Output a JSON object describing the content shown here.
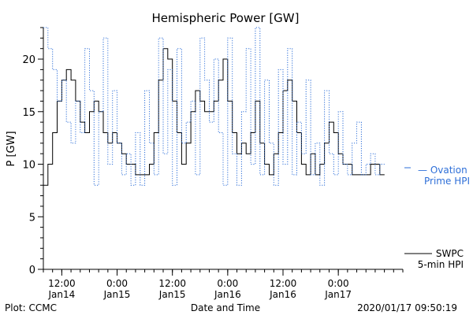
{
  "chart_data": {
    "type": "line",
    "title": "Hemispheric Power [GW]",
    "xlabel": "Date and Time",
    "ylabel": "P [GW]",
    "ylim": [
      0,
      23
    ],
    "yticks": [
      0,
      5,
      10,
      15,
      20
    ],
    "xlim": [
      "2020-01-14T08:00",
      "2020-01-17T14:00"
    ],
    "xticks": [
      {
        "t": "2020-01-14T12:00",
        "time": "12:00",
        "date": "Jan14"
      },
      {
        "t": "2020-01-15T00:00",
        "time": "0:00",
        "date": "Jan15"
      },
      {
        "t": "2020-01-15T12:00",
        "time": "12:00",
        "date": "Jan15"
      },
      {
        "t": "2020-01-16T00:00",
        "time": "0:00",
        "date": "Jan16"
      },
      {
        "t": "2020-01-16T12:00",
        "time": "12:00",
        "date": "Jan16"
      },
      {
        "t": "2020-01-17T00:00",
        "time": "0:00",
        "date": "Jan17"
      }
    ],
    "grid": false,
    "legend_placement": "right",
    "series": [
      {
        "name": "SWPC 5-min HPI",
        "legend": [
          "SWPC",
          "5-min HPI"
        ],
        "color": "#000000",
        "style": "solid",
        "x": [
          "2020-01-14T08:00",
          "2020-01-14T09:00",
          "2020-01-14T10:00",
          "2020-01-14T11:00",
          "2020-01-14T12:00",
          "2020-01-14T13:00",
          "2020-01-14T14:00",
          "2020-01-14T15:00",
          "2020-01-14T16:00",
          "2020-01-14T17:00",
          "2020-01-14T18:00",
          "2020-01-14T19:00",
          "2020-01-14T20:00",
          "2020-01-14T21:00",
          "2020-01-14T22:00",
          "2020-01-14T23:00",
          "2020-01-15T00:00",
          "2020-01-15T01:00",
          "2020-01-15T02:00",
          "2020-01-15T03:00",
          "2020-01-15T04:00",
          "2020-01-15T05:00",
          "2020-01-15T06:00",
          "2020-01-15T07:00",
          "2020-01-15T08:00",
          "2020-01-15T09:00",
          "2020-01-15T10:00",
          "2020-01-15T11:00",
          "2020-01-15T12:00",
          "2020-01-15T13:00",
          "2020-01-15T14:00",
          "2020-01-15T15:00",
          "2020-01-15T16:00",
          "2020-01-15T17:00",
          "2020-01-15T18:00",
          "2020-01-15T19:00",
          "2020-01-15T20:00",
          "2020-01-15T21:00",
          "2020-01-15T22:00",
          "2020-01-15T23:00",
          "2020-01-16T00:00",
          "2020-01-16T01:00",
          "2020-01-16T02:00",
          "2020-01-16T03:00",
          "2020-01-16T04:00",
          "2020-01-16T05:00",
          "2020-01-16T06:00",
          "2020-01-16T07:00",
          "2020-01-16T08:00",
          "2020-01-16T09:00",
          "2020-01-16T10:00",
          "2020-01-16T11:00",
          "2020-01-16T12:00",
          "2020-01-16T13:00",
          "2020-01-16T14:00",
          "2020-01-16T15:00",
          "2020-01-16T16:00",
          "2020-01-16T17:00",
          "2020-01-16T18:00",
          "2020-01-16T19:00",
          "2020-01-16T20:00",
          "2020-01-16T21:00",
          "2020-01-16T22:00",
          "2020-01-16T23:00",
          "2020-01-17T00:00",
          "2020-01-17T01:00",
          "2020-01-17T02:00",
          "2020-01-17T03:00",
          "2020-01-17T04:00",
          "2020-01-17T05:00",
          "2020-01-17T06:00",
          "2020-01-17T07:00",
          "2020-01-17T08:00",
          "2020-01-17T09:00"
        ],
        "y": [
          8,
          10,
          13,
          16,
          18,
          19,
          18,
          16,
          14,
          13,
          15,
          16,
          15,
          13,
          12,
          13,
          12,
          11,
          10,
          10,
          9,
          9,
          9,
          10,
          13,
          18,
          21,
          20,
          16,
          13,
          10,
          12,
          15,
          17,
          16,
          15,
          15,
          16,
          18,
          20,
          16,
          13,
          11,
          12,
          11,
          13,
          16,
          12,
          10,
          9,
          11,
          13,
          17,
          18,
          16,
          13,
          10,
          9,
          11,
          9,
          10,
          12,
          14,
          13,
          11,
          10,
          10,
          9,
          9,
          9,
          9,
          10,
          10,
          9
        ]
      },
      {
        "name": "Ovation Prime HPI",
        "legend": [
          "— Ovation",
          "Prime HPI"
        ],
        "color": "#2e6fd8",
        "style": "dotted",
        "x": [
          "2020-01-14T08:00",
          "2020-01-14T09:00",
          "2020-01-14T10:00",
          "2020-01-14T11:00",
          "2020-01-14T12:00",
          "2020-01-14T13:00",
          "2020-01-14T14:00",
          "2020-01-14T15:00",
          "2020-01-14T16:00",
          "2020-01-14T17:00",
          "2020-01-14T18:00",
          "2020-01-14T19:00",
          "2020-01-14T20:00",
          "2020-01-14T21:00",
          "2020-01-14T22:00",
          "2020-01-14T23:00",
          "2020-01-15T00:00",
          "2020-01-15T01:00",
          "2020-01-15T02:00",
          "2020-01-15T03:00",
          "2020-01-15T04:00",
          "2020-01-15T05:00",
          "2020-01-15T06:00",
          "2020-01-15T07:00",
          "2020-01-15T08:00",
          "2020-01-15T09:00",
          "2020-01-15T10:00",
          "2020-01-15T11:00",
          "2020-01-15T12:00",
          "2020-01-15T13:00",
          "2020-01-15T14:00",
          "2020-01-15T15:00",
          "2020-01-15T16:00",
          "2020-01-15T17:00",
          "2020-01-15T18:00",
          "2020-01-15T19:00",
          "2020-01-15T20:00",
          "2020-01-15T21:00",
          "2020-01-15T22:00",
          "2020-01-15T23:00",
          "2020-01-16T00:00",
          "2020-01-16T01:00",
          "2020-01-16T02:00",
          "2020-01-16T03:00",
          "2020-01-16T04:00",
          "2020-01-16T05:00",
          "2020-01-16T06:00",
          "2020-01-16T07:00",
          "2020-01-16T08:00",
          "2020-01-16T09:00",
          "2020-01-16T10:00",
          "2020-01-16T11:00",
          "2020-01-16T12:00",
          "2020-01-16T13:00",
          "2020-01-16T14:00",
          "2020-01-16T15:00",
          "2020-01-16T16:00",
          "2020-01-16T17:00",
          "2020-01-16T18:00",
          "2020-01-16T19:00",
          "2020-01-16T20:00",
          "2020-01-16T21:00",
          "2020-01-16T22:00",
          "2020-01-16T23:00",
          "2020-01-17T00:00",
          "2020-01-17T01:00",
          "2020-01-17T02:00",
          "2020-01-17T03:00",
          "2020-01-17T04:00",
          "2020-01-17T05:00",
          "2020-01-17T06:00",
          "2020-01-17T07:00",
          "2020-01-17T08:00",
          "2020-01-17T09:00"
        ],
        "y": [
          23,
          21,
          19,
          16,
          18,
          14,
          12,
          16,
          13,
          21,
          17,
          8,
          15,
          22,
          10,
          17,
          12,
          9,
          11,
          8,
          13,
          8,
          17,
          12,
          9,
          22,
          11,
          19,
          8,
          21,
          12,
          14,
          16,
          9,
          22,
          18,
          14,
          20,
          13,
          8,
          22,
          11,
          8,
          15,
          21,
          10,
          23,
          9,
          18,
          12,
          8,
          19,
          10,
          21,
          9,
          14,
          11,
          18,
          9,
          12,
          8,
          17,
          11,
          9,
          15,
          10,
          9,
          12,
          14,
          9,
          10,
          11,
          9,
          10
        ]
      }
    ]
  },
  "footer": {
    "left": "Plot: CCMC",
    "center": "Date and Time",
    "right": "2020/01/17 09:50:19"
  }
}
